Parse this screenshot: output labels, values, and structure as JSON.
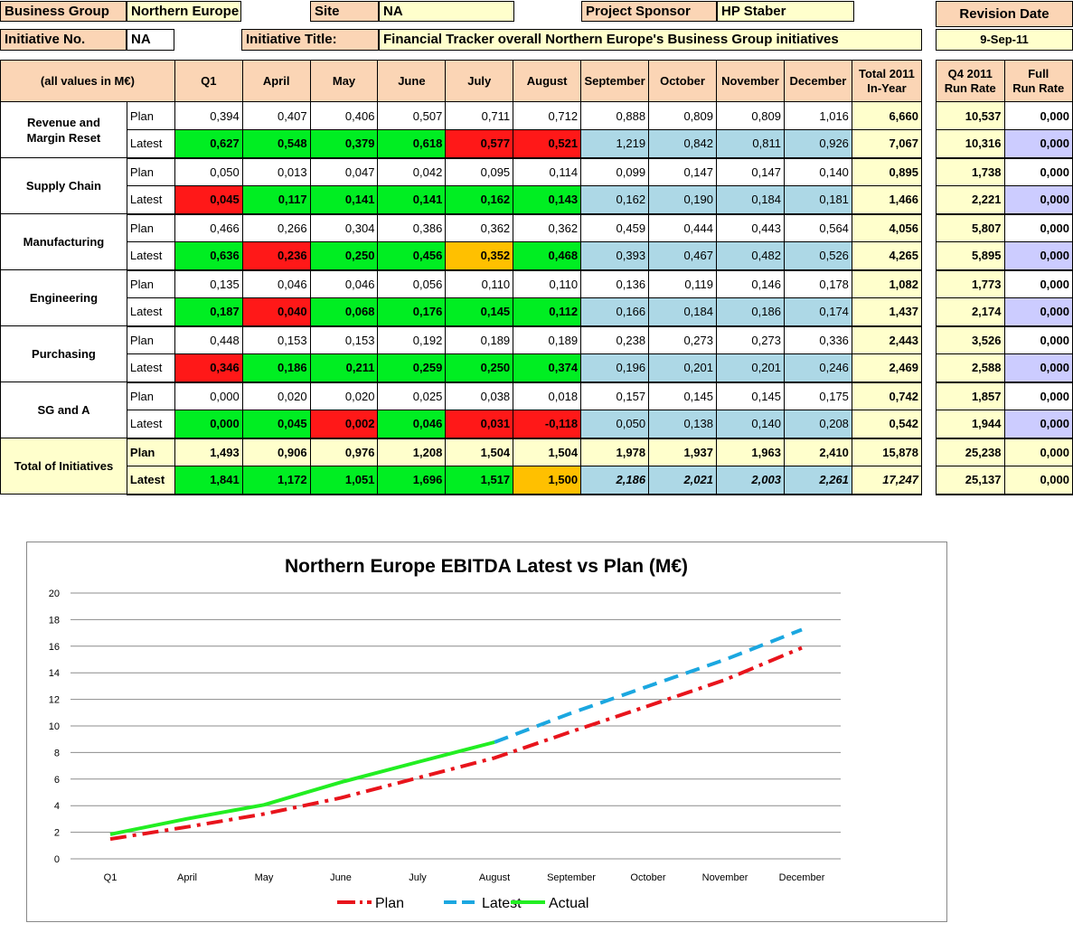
{
  "header": {
    "business_group_label": "Business Group",
    "business_group_value": "Northern Europe",
    "site_label": "Site",
    "site_value": "NA",
    "project_sponsor_label": "Project Sponsor",
    "project_sponsor_value": "HP Staber",
    "revision_date_label": "Revision Date",
    "revision_date_value": "9-Sep-11",
    "initiative_no_label": "Initiative No.",
    "initiative_no_value": "NA",
    "initiative_title_label": "Initiative Title:",
    "initiative_title_value": "Financial Tracker overall Northern Europe's Business Group initiatives"
  },
  "table": {
    "corner_label": "(all values in M€)",
    "months": [
      "Q1",
      "April",
      "May",
      "June",
      "July",
      "August",
      "September",
      "October",
      "November",
      "December"
    ],
    "total_header": [
      "Total 2011",
      "In-Year"
    ],
    "q4_header": [
      "Q4 2011",
      "Run Rate"
    ],
    "full_header": [
      "Full",
      "Run Rate"
    ],
    "groups": [
      {
        "name": [
          "Revenue and",
          "Margin Reset"
        ],
        "rows": [
          {
            "label": "Plan",
            "values": [
              "0,394",
              "0,407",
              "0,406",
              "0,507",
              "0,711",
              "0,712",
              "0,888",
              "0,809",
              "0,809",
              "1,016"
            ],
            "colors": [
              "w",
              "w",
              "w",
              "w",
              "w",
              "w",
              "w",
              "w",
              "w",
              "w"
            ],
            "total": "6,660",
            "q4": "10,537",
            "full": "0,000"
          },
          {
            "label": "Latest",
            "values": [
              "0,627",
              "0,548",
              "0,379",
              "0,618",
              "0,577",
              "0,521",
              "1,219",
              "0,842",
              "0,811",
              "0,926"
            ],
            "colors": [
              "g",
              "g",
              "g",
              "g",
              "r",
              "r",
              "b",
              "b",
              "b",
              "b"
            ],
            "total": "7,067",
            "q4": "10,316",
            "full": "0,000"
          }
        ]
      },
      {
        "name": [
          "Supply Chain"
        ],
        "rows": [
          {
            "label": "Plan",
            "values": [
              "0,050",
              "0,013",
              "0,047",
              "0,042",
              "0,095",
              "0,114",
              "0,099",
              "0,147",
              "0,147",
              "0,140"
            ],
            "colors": [
              "w",
              "w",
              "w",
              "w",
              "w",
              "w",
              "w",
              "w",
              "w",
              "w"
            ],
            "total": "0,895",
            "q4": "1,738",
            "full": "0,000"
          },
          {
            "label": "Latest",
            "values": [
              "0,045",
              "0,117",
              "0,141",
              "0,141",
              "0,162",
              "0,143",
              "0,162",
              "0,190",
              "0,184",
              "0,181"
            ],
            "colors": [
              "r",
              "g",
              "g",
              "g",
              "g",
              "g",
              "b",
              "b",
              "b",
              "b"
            ],
            "total": "1,466",
            "q4": "2,221",
            "full": "0,000"
          }
        ]
      },
      {
        "name": [
          "Manufacturing"
        ],
        "rows": [
          {
            "label": "Plan",
            "values": [
              "0,466",
              "0,266",
              "0,304",
              "0,386",
              "0,362",
              "0,362",
              "0,459",
              "0,444",
              "0,443",
              "0,564"
            ],
            "colors": [
              "w",
              "w",
              "w",
              "w",
              "w",
              "w",
              "w",
              "w",
              "w",
              "w"
            ],
            "total": "4,056",
            "q4": "5,807",
            "full": "0,000"
          },
          {
            "label": "Latest",
            "values": [
              "0,636",
              "0,236",
              "0,250",
              "0,456",
              "0,352",
              "0,468",
              "0,393",
              "0,467",
              "0,482",
              "0,526"
            ],
            "colors": [
              "g",
              "r",
              "g",
              "g",
              "o",
              "g",
              "b",
              "b",
              "b",
              "b"
            ],
            "total": "4,265",
            "q4": "5,895",
            "full": "0,000"
          }
        ]
      },
      {
        "name": [
          "Engineering"
        ],
        "rows": [
          {
            "label": "Plan",
            "values": [
              "0,135",
              "0,046",
              "0,046",
              "0,056",
              "0,110",
              "0,110",
              "0,136",
              "0,119",
              "0,146",
              "0,178"
            ],
            "colors": [
              "w",
              "w",
              "w",
              "w",
              "w",
              "w",
              "w",
              "w",
              "w",
              "w"
            ],
            "total": "1,082",
            "q4": "1,773",
            "full": "0,000"
          },
          {
            "label": "Latest",
            "values": [
              "0,187",
              "0,040",
              "0,068",
              "0,176",
              "0,145",
              "0,112",
              "0,166",
              "0,184",
              "0,186",
              "0,174"
            ],
            "colors": [
              "g",
              "r",
              "g",
              "g",
              "g",
              "g",
              "b",
              "b",
              "b",
              "b"
            ],
            "total": "1,437",
            "q4": "2,174",
            "full": "0,000"
          }
        ]
      },
      {
        "name": [
          "Purchasing"
        ],
        "rows": [
          {
            "label": "Plan",
            "values": [
              "0,448",
              "0,153",
              "0,153",
              "0,192",
              "0,189",
              "0,189",
              "0,238",
              "0,273",
              "0,273",
              "0,336"
            ],
            "colors": [
              "w",
              "w",
              "w",
              "w",
              "w",
              "w",
              "w",
              "w",
              "w",
              "w"
            ],
            "total": "2,443",
            "q4": "3,526",
            "full": "0,000"
          },
          {
            "label": "Latest",
            "values": [
              "0,346",
              "0,186",
              "0,211",
              "0,259",
              "0,250",
              "0,374",
              "0,196",
              "0,201",
              "0,201",
              "0,246"
            ],
            "colors": [
              "r",
              "g",
              "g",
              "g",
              "g",
              "g",
              "b",
              "b",
              "b",
              "b"
            ],
            "total": "2,469",
            "q4": "2,588",
            "full": "0,000"
          }
        ]
      },
      {
        "name": [
          "SG and  A"
        ],
        "rows": [
          {
            "label": "Plan",
            "values": [
              "0,000",
              "0,020",
              "0,020",
              "0,025",
              "0,038",
              "0,018",
              "0,157",
              "0,145",
              "0,145",
              "0,175"
            ],
            "colors": [
              "w",
              "w",
              "w",
              "w",
              "w",
              "w",
              "w",
              "w",
              "w",
              "w"
            ],
            "total": "0,742",
            "q4": "1,857",
            "full": "0,000"
          },
          {
            "label": "Latest",
            "values": [
              "0,000",
              "0,045",
              "0,002",
              "0,046",
              "0,031",
              "-0,118",
              "0,050",
              "0,138",
              "0,140",
              "0,208"
            ],
            "colors": [
              "g",
              "g",
              "r",
              "g",
              "r",
              "r",
              "b",
              "b",
              "b",
              "b"
            ],
            "total": "0,542",
            "q4": "1,944",
            "full": "0,000"
          }
        ]
      }
    ],
    "totals": {
      "name": "Total of Initiatives",
      "rows": [
        {
          "label": "Plan",
          "values": [
            "1,493",
            "0,906",
            "0,976",
            "1,208",
            "1,504",
            "1,504",
            "1,978",
            "1,937",
            "1,963",
            "2,410"
          ],
          "colors": [
            "y",
            "y",
            "y",
            "y",
            "y",
            "y",
            "y",
            "y",
            "y",
            "y"
          ],
          "total": "15,878",
          "q4": "25,238",
          "full": "0,000"
        },
        {
          "label": "Latest",
          "values": [
            "1,841",
            "1,172",
            "1,051",
            "1,696",
            "1,517",
            "1,500",
            "2,186",
            "2,021",
            "2,003",
            "2,261"
          ],
          "colors": [
            "g",
            "g",
            "g",
            "g",
            "g",
            "o",
            "bbi",
            "bbi",
            "bbi",
            "bbi"
          ],
          "total": "17,247",
          "q4": "25,137",
          "full": "0,000"
        }
      ]
    }
  },
  "chart_data": {
    "type": "line",
    "title": "Northern Europe EBITDA Latest vs Plan (M€)",
    "categories": [
      "Q1",
      "April",
      "May",
      "June",
      "July",
      "August",
      "September",
      "October",
      "November",
      "December"
    ],
    "ylim": [
      0,
      20
    ],
    "yticks": [
      0,
      2,
      4,
      6,
      8,
      10,
      12,
      14,
      16,
      18,
      20
    ],
    "grid": true,
    "legend_position": "bottom",
    "series": [
      {
        "name": "Plan",
        "color": "#e8141c",
        "style": "dash-dot",
        "values": [
          1.493,
          2.399,
          3.375,
          4.583,
          6.087,
          7.591,
          9.569,
          11.506,
          13.469,
          15.879
        ]
      },
      {
        "name": "Latest",
        "color": "#1ba7e0",
        "style": "dashed",
        "values": [
          null,
          null,
          null,
          null,
          null,
          8.777,
          10.963,
          12.984,
          14.987,
          17.248
        ]
      },
      {
        "name": "Actual",
        "color": "#22ee22",
        "style": "solid",
        "values": [
          1.841,
          3.013,
          4.064,
          5.76,
          7.277,
          8.777,
          null,
          null,
          null,
          null
        ]
      }
    ]
  }
}
